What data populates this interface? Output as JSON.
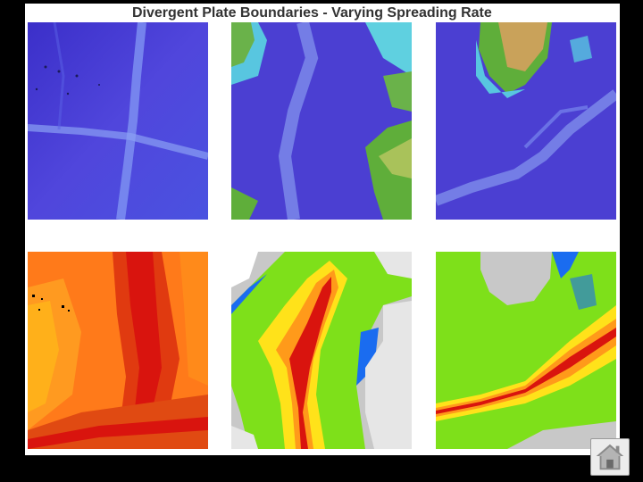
{
  "slide": {
    "title": "Divergent Plate Boundaries - Varying Spreading Rate"
  },
  "panels": {
    "top": [
      {
        "name": "bathymetry-map-pacific",
        "icon": "bathymetry-map"
      },
      {
        "name": "bathymetry-map-atlantic",
        "icon": "bathymetry-map"
      },
      {
        "name": "bathymetry-map-indian",
        "icon": "bathymetry-map"
      }
    ],
    "bottom": [
      {
        "name": "age-map-pacific",
        "icon": "seafloor-age-map"
      },
      {
        "name": "age-map-atlantic",
        "icon": "seafloor-age-map"
      },
      {
        "name": "age-map-indian",
        "icon": "seafloor-age-map"
      }
    ]
  },
  "colors": {
    "ocean_deep": "#4a3fd6",
    "ocean_ridge": "#7a8ef0",
    "land_green": "#5fae3a",
    "land_tan": "#c9a25a",
    "age_red": "#d9140e",
    "age_orange": "#ff7a1a",
    "age_yellow": "#ffe21a",
    "age_green": "#7ee01a",
    "age_blue": "#1a6cf0",
    "land_gray": "#c8c8c8"
  },
  "nav": {
    "home_icon": "home-icon"
  }
}
